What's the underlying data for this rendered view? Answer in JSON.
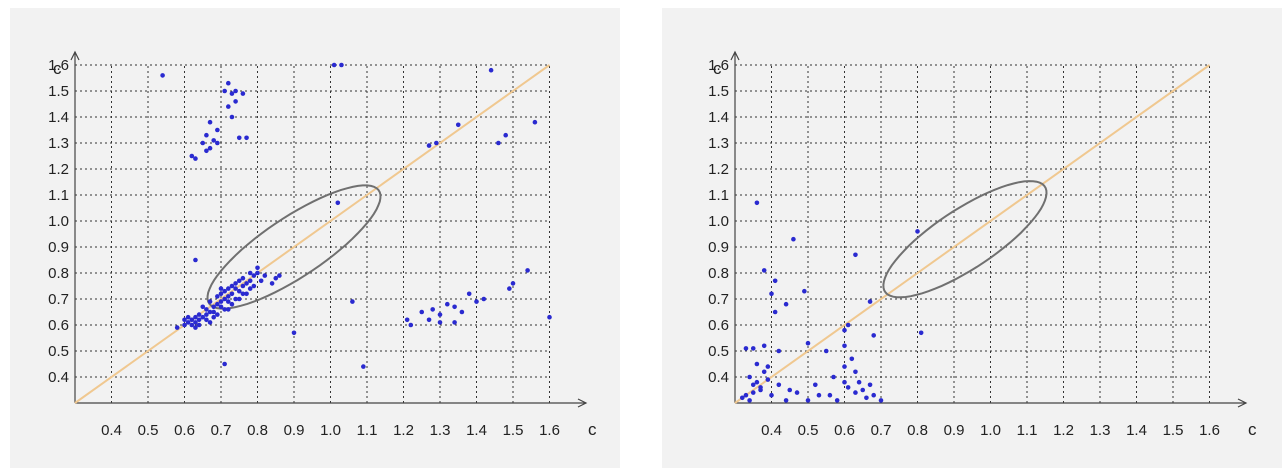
{
  "chart_data": [
    {
      "type": "scatter",
      "xlabel": "c",
      "ylabel": "c",
      "xlim": [
        0.3,
        1.7
      ],
      "ylim": [
        0.3,
        1.65
      ],
      "x_ticks": [
        "0.4",
        "0.5",
        "0.6",
        "0.7",
        "0.8",
        "0.9",
        "1.0",
        "1.1",
        "1.2",
        "1.3",
        "1.4",
        "1.5",
        "1.6"
      ],
      "y_ticks": [
        "0.4",
        "0.5",
        "0.6",
        "0.7",
        "0.8",
        "0.9",
        "1.0",
        "1.1",
        "1.2",
        "1.3",
        "1.4",
        "1.5",
        "1.6"
      ],
      "grid": true,
      "diagonal": {
        "from": [
          0.3,
          0.3
        ],
        "to": [
          1.6,
          1.6
        ],
        "color": "#f0c890"
      },
      "ellipse": {
        "center": [
          0.9,
          0.9
        ],
        "semi_major": 0.32,
        "semi_minor": 0.1,
        "angle_deg": 45,
        "color": "#707070"
      },
      "point_color": "#2a2ad0",
      "points": [
        [
          0.54,
          1.56
        ],
        [
          0.72,
          1.53
        ],
        [
          0.71,
          1.5
        ],
        [
          0.73,
          1.49
        ],
        [
          0.74,
          1.5
        ],
        [
          0.76,
          1.49
        ],
        [
          0.74,
          1.46
        ],
        [
          0.72,
          1.44
        ],
        [
          0.73,
          1.4
        ],
        [
          0.67,
          1.38
        ],
        [
          0.69,
          1.35
        ],
        [
          0.66,
          1.33
        ],
        [
          0.68,
          1.31
        ],
        [
          0.65,
          1.3
        ],
        [
          0.67,
          1.28
        ],
        [
          0.69,
          1.3
        ],
        [
          0.75,
          1.32
        ],
        [
          0.77,
          1.32
        ],
        [
          0.62,
          1.25
        ],
        [
          0.63,
          1.24
        ],
        [
          0.66,
          1.27
        ],
        [
          1.01,
          1.6
        ],
        [
          1.03,
          1.6
        ],
        [
          1.27,
          1.29
        ],
        [
          1.29,
          1.3
        ],
        [
          1.35,
          1.37
        ],
        [
          1.44,
          1.58
        ],
        [
          1.46,
          1.3
        ],
        [
          1.48,
          1.33
        ],
        [
          1.56,
          1.38
        ],
        [
          1.02,
          1.07
        ],
        [
          0.63,
          0.85
        ],
        [
          0.84,
          0.76
        ],
        [
          0.86,
          0.79
        ],
        [
          0.9,
          0.57
        ],
        [
          1.06,
          0.69
        ],
        [
          0.71,
          0.45
        ],
        [
          1.09,
          0.44
        ],
        [
          1.6,
          0.63
        ],
        [
          1.54,
          0.81
        ],
        [
          1.5,
          0.76
        ],
        [
          1.49,
          0.74
        ],
        [
          1.42,
          0.7
        ],
        [
          1.4,
          0.69
        ],
        [
          1.38,
          0.72
        ],
        [
          1.34,
          0.67
        ],
        [
          1.36,
          0.65
        ],
        [
          1.32,
          0.68
        ],
        [
          1.3,
          0.64
        ],
        [
          1.28,
          0.66
        ],
        [
          1.27,
          0.62
        ],
        [
          1.3,
          0.61
        ],
        [
          1.34,
          0.61
        ],
        [
          1.25,
          0.65
        ],
        [
          1.21,
          0.62
        ],
        [
          1.22,
          0.6
        ],
        [
          0.58,
          0.59
        ],
        [
          0.6,
          0.6
        ],
        [
          0.61,
          0.61
        ],
        [
          0.62,
          0.62
        ],
        [
          0.63,
          0.63
        ],
        [
          0.64,
          0.64
        ],
        [
          0.65,
          0.63
        ],
        [
          0.66,
          0.66
        ],
        [
          0.67,
          0.65
        ],
        [
          0.68,
          0.67
        ],
        [
          0.69,
          0.68
        ],
        [
          0.7,
          0.69
        ],
        [
          0.71,
          0.7
        ],
        [
          0.72,
          0.71
        ],
        [
          0.73,
          0.72
        ],
        [
          0.74,
          0.74
        ],
        [
          0.75,
          0.73
        ],
        [
          0.76,
          0.75
        ],
        [
          0.77,
          0.76
        ],
        [
          0.78,
          0.77
        ],
        [
          0.79,
          0.79
        ],
        [
          0.8,
          0.8
        ],
        [
          0.64,
          0.62
        ],
        [
          0.66,
          0.64
        ],
        [
          0.68,
          0.65
        ],
        [
          0.7,
          0.67
        ],
        [
          0.72,
          0.69
        ],
        [
          0.74,
          0.7
        ],
        [
          0.76,
          0.72
        ],
        [
          0.78,
          0.74
        ],
        [
          0.65,
          0.67
        ],
        [
          0.67,
          0.69
        ],
        [
          0.69,
          0.71
        ],
        [
          0.71,
          0.73
        ],
        [
          0.73,
          0.75
        ],
        [
          0.75,
          0.77
        ],
        [
          0.62,
          0.6
        ],
        [
          0.63,
          0.61
        ],
        [
          0.64,
          0.6
        ],
        [
          0.6,
          0.62
        ],
        [
          0.61,
          0.63
        ],
        [
          0.7,
          0.72
        ],
        [
          0.72,
          0.74
        ],
        [
          0.74,
          0.76
        ],
        [
          0.73,
          0.68
        ],
        [
          0.75,
          0.7
        ],
        [
          0.77,
          0.72
        ],
        [
          0.79,
          0.75
        ],
        [
          0.81,
          0.77
        ],
        [
          0.82,
          0.79
        ],
        [
          0.68,
          0.63
        ],
        [
          0.69,
          0.64
        ],
        [
          0.71,
          0.66
        ],
        [
          0.66,
          0.62
        ],
        [
          0.63,
          0.59
        ],
        [
          0.67,
          0.61
        ],
        [
          0.85,
          0.78
        ],
        [
          0.78,
          0.8
        ],
        [
          0.76,
          0.78
        ],
        [
          0.8,
          0.82
        ],
        [
          0.7,
          0.74
        ],
        [
          0.72,
          0.66
        ]
      ]
    },
    {
      "type": "scatter",
      "xlabel": "c",
      "ylabel": "c",
      "xlim": [
        0.3,
        1.7
      ],
      "ylim": [
        0.3,
        1.65
      ],
      "x_ticks": [
        "0.4",
        "0.5",
        "0.6",
        "0.7",
        "0.8",
        "0.9",
        "1.0",
        "1.1",
        "1.2",
        "1.3",
        "1.4",
        "1.5",
        "1.6"
      ],
      "y_ticks": [
        "0.4",
        "0.5",
        "0.6",
        "0.7",
        "0.8",
        "0.9",
        "1.0",
        "1.1",
        "1.2",
        "1.3",
        "1.4",
        "1.5",
        "1.6"
      ],
      "grid": true,
      "diagonal": {
        "from": [
          0.3,
          0.3
        ],
        "to": [
          1.6,
          1.6
        ],
        "color": "#f0c890"
      },
      "ellipse": {
        "center": [
          0.93,
          0.93
        ],
        "semi_major": 0.3,
        "semi_minor": 0.1,
        "angle_deg": 45,
        "color": "#707070"
      },
      "point_color": "#2a2ad0",
      "points": [
        [
          0.36,
          1.07
        ],
        [
          0.46,
          0.93
        ],
        [
          0.63,
          0.87
        ],
        [
          0.8,
          0.96
        ],
        [
          0.38,
          0.81
        ],
        [
          0.41,
          0.77
        ],
        [
          0.4,
          0.72
        ],
        [
          0.44,
          0.68
        ],
        [
          0.41,
          0.65
        ],
        [
          0.49,
          0.73
        ],
        [
          0.67,
          0.69
        ],
        [
          0.68,
          0.56
        ],
        [
          0.61,
          0.6
        ],
        [
          0.6,
          0.58
        ],
        [
          0.81,
          0.57
        ],
        [
          0.33,
          0.51
        ],
        [
          0.35,
          0.51
        ],
        [
          0.38,
          0.52
        ],
        [
          0.42,
          0.5
        ],
        [
          0.5,
          0.53
        ],
        [
          0.55,
          0.5
        ],
        [
          0.6,
          0.52
        ],
        [
          0.62,
          0.47
        ],
        [
          0.6,
          0.44
        ],
        [
          0.63,
          0.42
        ],
        [
          0.64,
          0.38
        ],
        [
          0.65,
          0.35
        ],
        [
          0.63,
          0.34
        ],
        [
          0.66,
          0.32
        ],
        [
          0.61,
          0.36
        ],
        [
          0.6,
          0.38
        ],
        [
          0.57,
          0.4
        ],
        [
          0.56,
          0.33
        ],
        [
          0.52,
          0.37
        ],
        [
          0.34,
          0.4
        ],
        [
          0.36,
          0.38
        ],
        [
          0.37,
          0.36
        ],
        [
          0.35,
          0.34
        ],
        [
          0.38,
          0.42
        ],
        [
          0.39,
          0.44
        ],
        [
          0.36,
          0.45
        ],
        [
          0.33,
          0.33
        ],
        [
          0.34,
          0.31
        ],
        [
          0.32,
          0.32
        ],
        [
          0.42,
          0.37
        ],
        [
          0.4,
          0.33
        ],
        [
          0.45,
          0.35
        ],
        [
          0.44,
          0.31
        ],
        [
          0.47,
          0.34
        ],
        [
          0.5,
          0.31
        ],
        [
          0.53,
          0.33
        ],
        [
          0.67,
          0.37
        ],
        [
          0.68,
          0.33
        ],
        [
          0.58,
          0.31
        ],
        [
          0.7,
          0.31
        ],
        [
          0.37,
          0.35
        ],
        [
          0.35,
          0.37
        ],
        [
          0.39,
          0.39
        ]
      ]
    }
  ]
}
